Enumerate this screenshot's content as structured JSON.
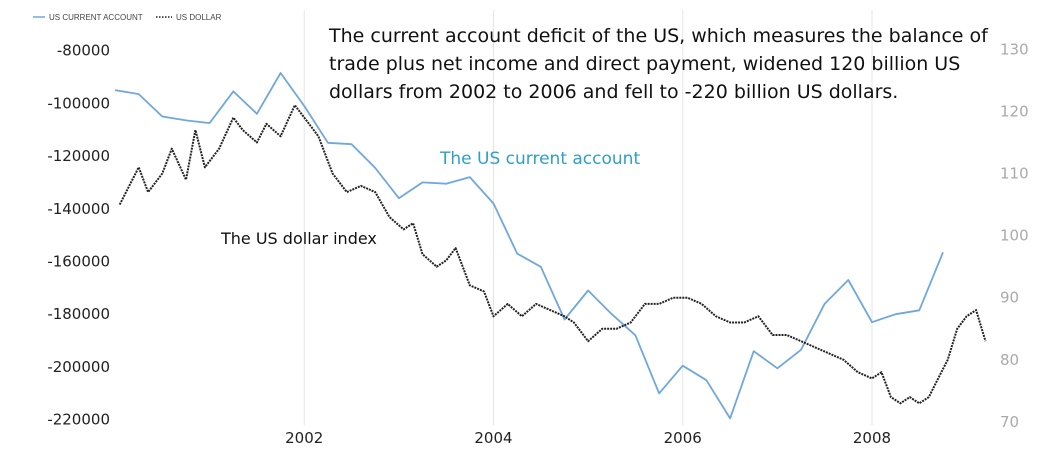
{
  "chart_data": {
    "type": "line",
    "legend": [
      {
        "label": "US CURRENT ACCOUNT",
        "color": "#6FA8DC",
        "style": "solid"
      },
      {
        "label": "US DOLLAR",
        "color": "#222222",
        "style": "dotted"
      }
    ],
    "legend_position": "top-left",
    "x_range": [
      2000.0,
      2009.3
    ],
    "x_ticks": [
      "2002",
      "2004",
      "2006",
      "2008"
    ],
    "y_left": {
      "range": [
        -222000,
        -76000
      ],
      "ticks": [
        -80000,
        -100000,
        -120000,
        -140000,
        -160000,
        -180000,
        -200000,
        -220000
      ],
      "tick_labels": [
        "-80000",
        "-100000",
        "-120000",
        "-140000",
        "-160000",
        "-180000",
        "-200000",
        "-220000"
      ]
    },
    "y_right": {
      "range": [
        69.5,
        131.5
      ],
      "ticks": [
        130,
        120,
        110,
        100,
        90,
        80,
        70
      ],
      "tick_labels": [
        "130",
        "120",
        "110",
        "100",
        "90",
        "80",
        "70"
      ]
    },
    "grid": {
      "vertical": true,
      "horizontal": false
    },
    "series": [
      {
        "name": "US CURRENT ACCOUNT",
        "axis": "left",
        "color": "#6FA8DC",
        "x": [
          2000.0,
          2000.25,
          2000.5,
          2000.75,
          2001.0,
          2001.25,
          2001.5,
          2001.75,
          2002.0,
          2002.25,
          2002.5,
          2002.75,
          2003.0,
          2003.25,
          2003.5,
          2003.75,
          2004.0,
          2004.25,
          2004.5,
          2004.75,
          2005.0,
          2005.25,
          2005.5,
          2005.75,
          2006.0,
          2006.25,
          2006.5,
          2006.75,
          2007.0,
          2007.25,
          2007.5,
          2007.75,
          2008.0,
          2008.25,
          2008.5,
          2008.75,
          2009.0
        ],
        "y": [
          -95000,
          -96500,
          -105000,
          -106500,
          -107500,
          -95500,
          -104000,
          -88500,
          -101000,
          -115000,
          -115500,
          -124500,
          -136000,
          -130000,
          -130500,
          -128000,
          -138000,
          -157000,
          -162000,
          -182000,
          -171000,
          -180000,
          -188000,
          -210000,
          -199500,
          -205000,
          -219500,
          -194000,
          -200500,
          -193500,
          -176000,
          -167000,
          -183000,
          -180000,
          -178500,
          -156500,
          null
        ]
      },
      {
        "name": "US DOLLAR",
        "axis": "right",
        "color": "#222222",
        "x": [
          2000.05,
          2000.15,
          2000.25,
          2000.35,
          2000.5,
          2000.6,
          2000.75,
          2000.85,
          2000.95,
          2001.1,
          2001.25,
          2001.35,
          2001.5,
          2001.6,
          2001.75,
          2001.9,
          2002.05,
          2002.15,
          2002.3,
          2002.45,
          2002.6,
          2002.75,
          2002.9,
          2003.05,
          2003.15,
          2003.25,
          2003.4,
          2003.5,
          2003.6,
          2003.75,
          2003.9,
          2004.0,
          2004.15,
          2004.3,
          2004.45,
          2004.6,
          2004.75,
          2004.85,
          2005.0,
          2005.15,
          2005.3,
          2005.45,
          2005.6,
          2005.75,
          2005.9,
          2006.05,
          2006.2,
          2006.35,
          2006.5,
          2006.65,
          2006.8,
          2006.95,
          2007.1,
          2007.25,
          2007.4,
          2007.55,
          2007.7,
          2007.85,
          2008.0,
          2008.1,
          2008.2,
          2008.3,
          2008.4,
          2008.5,
          2008.6,
          2008.7,
          2008.8,
          2008.9,
          2009.0,
          2009.1,
          2009.2
        ],
        "y": [
          105,
          108,
          111,
          107,
          110,
          114,
          109,
          117,
          111,
          114,
          119,
          117,
          115,
          118,
          116,
          121,
          118,
          116,
          110,
          107,
          108,
          107,
          103,
          101,
          102,
          97,
          95,
          96,
          98,
          92,
          91,
          87,
          89,
          87,
          89,
          88,
          87,
          86,
          83,
          85,
          85,
          86,
          89,
          89,
          90,
          90,
          89,
          87,
          86,
          86,
          87,
          84,
          84,
          83,
          82,
          81,
          80,
          78,
          77,
          78,
          74,
          73,
          74,
          73,
          74,
          77,
          80,
          85,
          87,
          88,
          83
        ]
      }
    ],
    "annotations": [
      {
        "text": "The current account deficit of the US, which measures the balance of",
        "color": "#111111"
      },
      {
        "text": "trade plus net income and direct payment, widened 120 billion US",
        "color": "#111111"
      },
      {
        "text": "dollars from 2002 to 2006 and fell to -220 billion US dollars.",
        "color": "#111111"
      },
      {
        "text": "The US current account",
        "color": "#2E9FC9"
      },
      {
        "text": "The US dollar index",
        "color": "#111111"
      }
    ]
  }
}
